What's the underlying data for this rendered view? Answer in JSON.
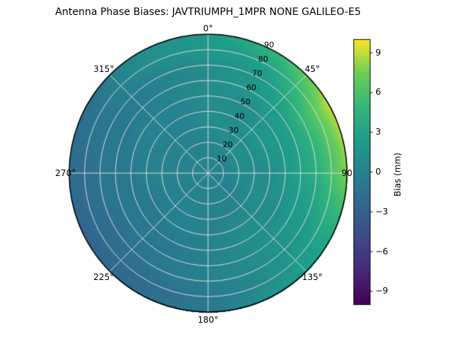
{
  "title": "Antenna Phase Biases: JAVTRIUMPH_1MPR NONE GALILEO-E5",
  "chart_data": {
    "type": "heatmap",
    "projection": "polar",
    "title": "Antenna Phase Biases: JAVTRIUMPH_1MPR NONE GALILEO-E5",
    "colormap": "viridis",
    "vmin": -10,
    "vmax": 10,
    "azimuth_deg": [
      0,
      30,
      60,
      90,
      120,
      150,
      180,
      210,
      240,
      270,
      300,
      330
    ],
    "zenith_deg": [
      0,
      10,
      20,
      30,
      40,
      50,
      60,
      70,
      80,
      90
    ],
    "values_bias_mm": [
      [
        0,
        0,
        0,
        1,
        1,
        1,
        1,
        1,
        2,
        2
      ],
      [
        0,
        0,
        1,
        1,
        1,
        1,
        2,
        2,
        3,
        5
      ],
      [
        0,
        0,
        1,
        1,
        2,
        2,
        3,
        5,
        7,
        9
      ],
      [
        0,
        0,
        1,
        1,
        1,
        2,
        3,
        4,
        6,
        8
      ],
      [
        0,
        0,
        0,
        1,
        1,
        1,
        2,
        2,
        3,
        3
      ],
      [
        0,
        0,
        0,
        0,
        1,
        1,
        1,
        1,
        1,
        2
      ],
      [
        0,
        0,
        0,
        0,
        0,
        0,
        0,
        0,
        -1,
        -1
      ],
      [
        0,
        0,
        0,
        0,
        0,
        -1,
        -1,
        -1,
        -2,
        -2
      ],
      [
        0,
        0,
        0,
        0,
        -1,
        -1,
        -1,
        -2,
        -2,
        -3
      ],
      [
        0,
        0,
        0,
        0,
        0,
        -1,
        -1,
        -1,
        -2,
        -2
      ],
      [
        0,
        0,
        0,
        0,
        0,
        0,
        -1,
        -1,
        -1,
        -2
      ],
      [
        0,
        0,
        0,
        0,
        0,
        0,
        0,
        0,
        1,
        1
      ]
    ],
    "theta_ticks_deg": [
      0,
      45,
      90,
      135,
      180,
      225,
      270,
      315
    ],
    "theta_tick_labels": [
      "0°",
      "45°",
      "90",
      "135°",
      "180°",
      "225°",
      "270°",
      "315°"
    ],
    "r_ticks_deg": [
      10,
      20,
      30,
      40,
      50,
      60,
      70,
      80,
      90
    ],
    "r_tick_labels": [
      "10",
      "20",
      "30",
      "40",
      "50",
      "60",
      "70",
      "80",
      "90"
    ],
    "grid": true,
    "legend_position": "right-colorbar",
    "colorbar": {
      "label": "Bias (mm)",
      "ticks": [
        9,
        6,
        3,
        0,
        -3,
        -6,
        -9
      ],
      "tick_labels": [
        "9",
        "6",
        "3",
        "0",
        "−3",
        "−6",
        "−9"
      ]
    }
  },
  "colors": {
    "background": "#ffffff",
    "grid_line": "#dcdcdc",
    "outline": "#000000",
    "text": "#000000",
    "colormap_mid_teal": "#26828e",
    "colormap_high_yellow": "#fde725",
    "colormap_low_purple": "#440154"
  }
}
